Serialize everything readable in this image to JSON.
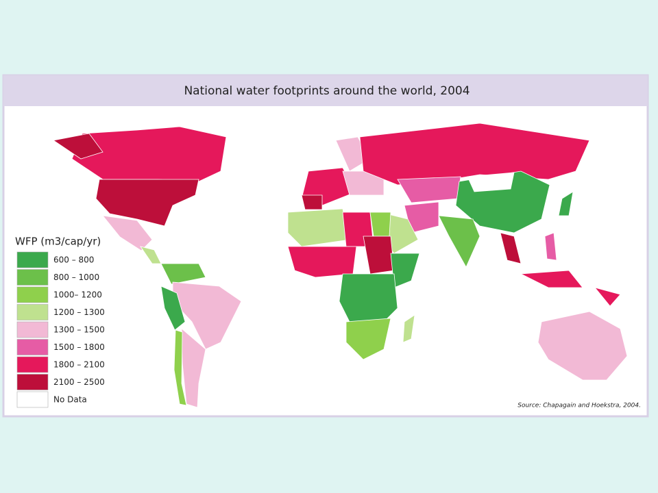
{
  "title": "National water footprints around the world, 2004",
  "legend": {
    "title": "WFP (m3/cap/yr)",
    "items": [
      {
        "label": "600 –  800",
        "color": "#3ba94c"
      },
      {
        "label": "800 – 1000",
        "color": "#6cc04a"
      },
      {
        "label": "1000– 1200",
        "color": "#8fd04c"
      },
      {
        "label": "1200 – 1300",
        "color": "#bfe18f"
      },
      {
        "label": "1300 – 1500",
        "color": "#f2b9d5"
      },
      {
        "label": "1500 – 1800",
        "color": "#e65ca5"
      },
      {
        "label": "1800 – 2100",
        "color": "#e5185b"
      },
      {
        "label": "2100 – 2500",
        "color": "#bd0f3a"
      },
      {
        "label": "No Data",
        "color": "#ffffff"
      }
    ]
  },
  "source": "Source: Chapagain and Hoekstra, 2004."
}
